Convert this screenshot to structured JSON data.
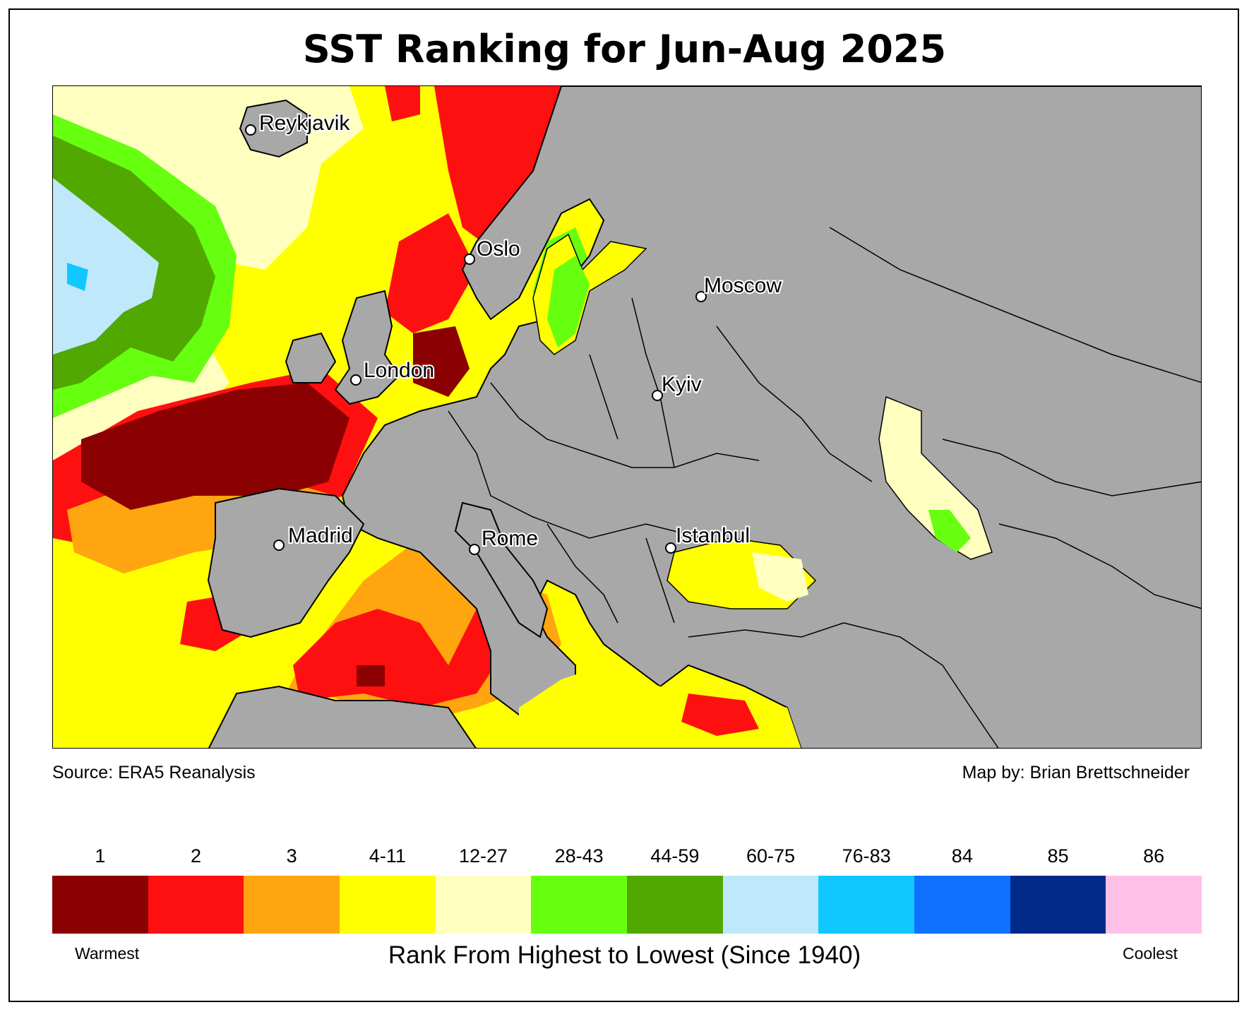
{
  "title": "SST Ranking for Jun-Aug 2025",
  "source": "Source: ERA5 Reanalysis",
  "credit": "Map by: Brian Brettschneider",
  "cities": [
    {
      "name": "Reykjavik"
    },
    {
      "name": "Oslo"
    },
    {
      "name": "Moscow"
    },
    {
      "name": "London"
    },
    {
      "name": "Kyiv"
    },
    {
      "name": "Madrid"
    },
    {
      "name": "Rome"
    },
    {
      "name": "Istanbul"
    }
  ],
  "legend": {
    "bins": [
      {
        "label": "1",
        "color": "#8b0000"
      },
      {
        "label": "2",
        "color": "#ff1010"
      },
      {
        "label": "3",
        "color": "#ffa510"
      },
      {
        "label": "4-11",
        "color": "#ffff00"
      },
      {
        "label": "12-27",
        "color": "#ffffc0"
      },
      {
        "label": "28-43",
        "color": "#66ff10"
      },
      {
        "label": "44-59",
        "color": "#50a800"
      },
      {
        "label": "60-75",
        "color": "#c0e8fb"
      },
      {
        "label": "76-83",
        "color": "#10c8ff"
      },
      {
        "label": "84",
        "color": "#1070ff"
      },
      {
        "label": "85",
        "color": "#002a8a"
      },
      {
        "label": "86",
        "color": "#ffc0e8"
      }
    ],
    "low_end": "Warmest",
    "high_end": "Coolest",
    "axis_label": "Rank From Highest to Lowest (Since 1940)"
  },
  "land_color": "#a8a8a8"
}
